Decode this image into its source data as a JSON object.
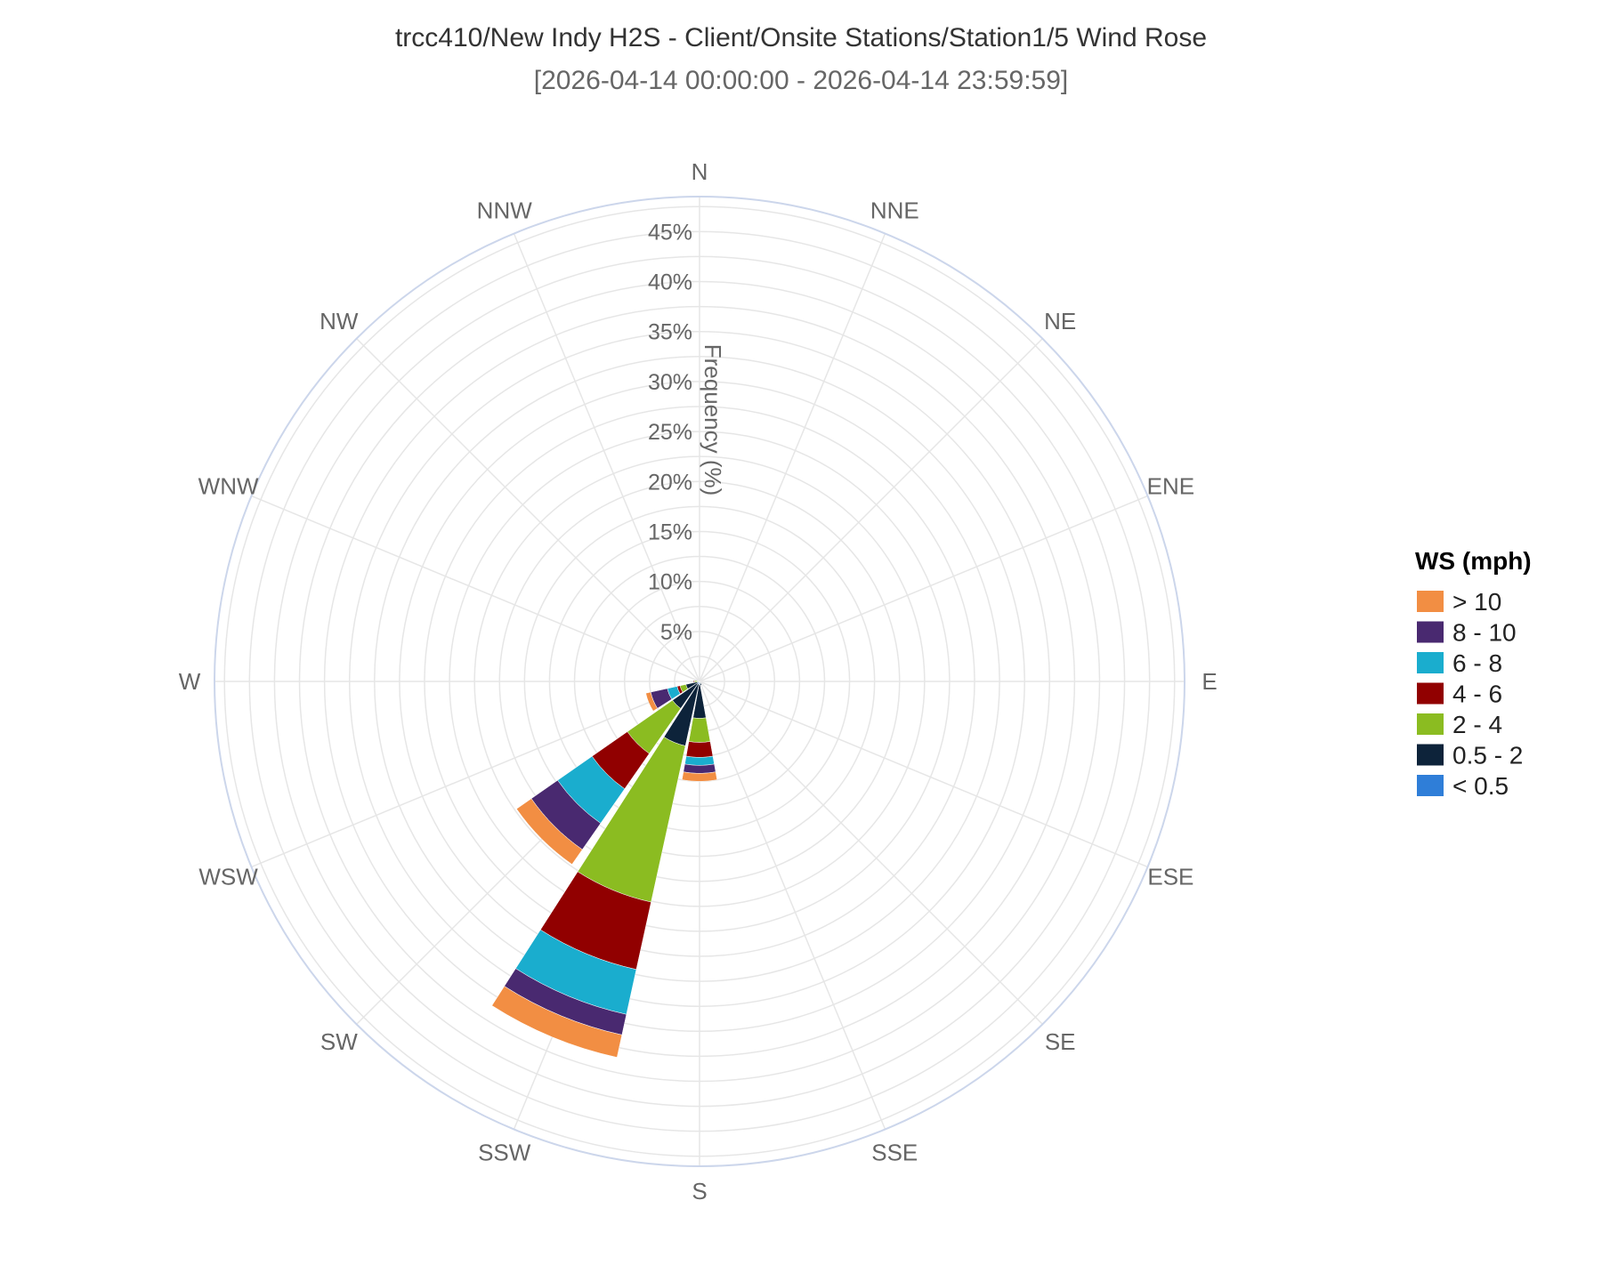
{
  "chart_data": {
    "type": "windrose",
    "title": "trcc410/New Indy H2S - Client/Onsite Stations/Station1/5 Wind Rose",
    "subtitle": "[2026-04-14 00:00:00 - 2026-04-14 23:59:59]",
    "radial_axis": {
      "title": "Frequency (%)",
      "ticks": [
        "5%",
        "10%",
        "15%",
        "20%",
        "25%",
        "30%",
        "35%",
        "40%",
        "45%"
      ],
      "max": 48.5
    },
    "directions": [
      "N",
      "NNE",
      "NE",
      "ENE",
      "E",
      "ESE",
      "SE",
      "SSE",
      "S",
      "SSW",
      "SW",
      "WSW",
      "W",
      "WNW",
      "NW",
      "NNW"
    ],
    "legend": {
      "title": "WS (mph)",
      "items": [
        {
          "label": "> 10",
          "color": "#f28e43"
        },
        {
          "label": "8 - 10",
          "color": "#492970"
        },
        {
          "label": "6 - 8",
          "color": "#1aadce"
        },
        {
          "label": "4 - 6",
          "color": "#910000"
        },
        {
          "label": "2 - 4",
          "color": "#8bbc21"
        },
        {
          "label": "0.5 - 2",
          "color": "#0d233a"
        },
        {
          "label": "< 0.5",
          "color": "#2f7ed8"
        }
      ]
    },
    "series": [
      {
        "name": "< 0.5",
        "color": "#2f7ed8",
        "values": [
          0,
          0,
          0,
          0,
          0,
          0,
          0,
          0,
          0.3,
          0.3,
          0.3,
          0,
          0,
          0,
          0,
          0
        ]
      },
      {
        "name": "0.5 - 2",
        "color": "#0d233a",
        "values": [
          0,
          0,
          0,
          0,
          0,
          0,
          0,
          0.4,
          3.4,
          6.3,
          3.0,
          1.4,
          0.2,
          0,
          0,
          0
        ]
      },
      {
        "name": "2 - 4",
        "color": "#8bbc21",
        "values": [
          0,
          0,
          0,
          0,
          0,
          0,
          0,
          0,
          2.4,
          16.0,
          5.5,
          0.6,
          0.3,
          0,
          0,
          0
        ]
      },
      {
        "name": "4 - 6",
        "color": "#910000",
        "values": [
          0,
          0,
          0,
          0,
          0,
          0,
          0,
          0,
          1.5,
          6.9,
          4.3,
          0.3,
          0.1,
          0,
          0,
          0
        ]
      },
      {
        "name": "6 - 8",
        "color": "#1aadce",
        "values": [
          0,
          0,
          0,
          0,
          0,
          0,
          0,
          0,
          0.8,
          4.6,
          4.2,
          1.0,
          0,
          0,
          0,
          0
        ]
      },
      {
        "name": "8 - 10",
        "color": "#492970",
        "values": [
          0,
          0,
          0,
          0,
          0,
          0,
          0,
          0,
          0.8,
          2.1,
          3.2,
          1.7,
          0,
          0,
          0,
          0
        ]
      },
      {
        "name": "> 10",
        "color": "#f28e43",
        "values": [
          0,
          0,
          0,
          0,
          0,
          0,
          0,
          0,
          0.8,
          2.3,
          1.8,
          0.5,
          0,
          0,
          0,
          0
        ]
      }
    ],
    "colors": {
      "grid": "#e6e6e6",
      "outer_ring": "#ccd6eb"
    }
  }
}
